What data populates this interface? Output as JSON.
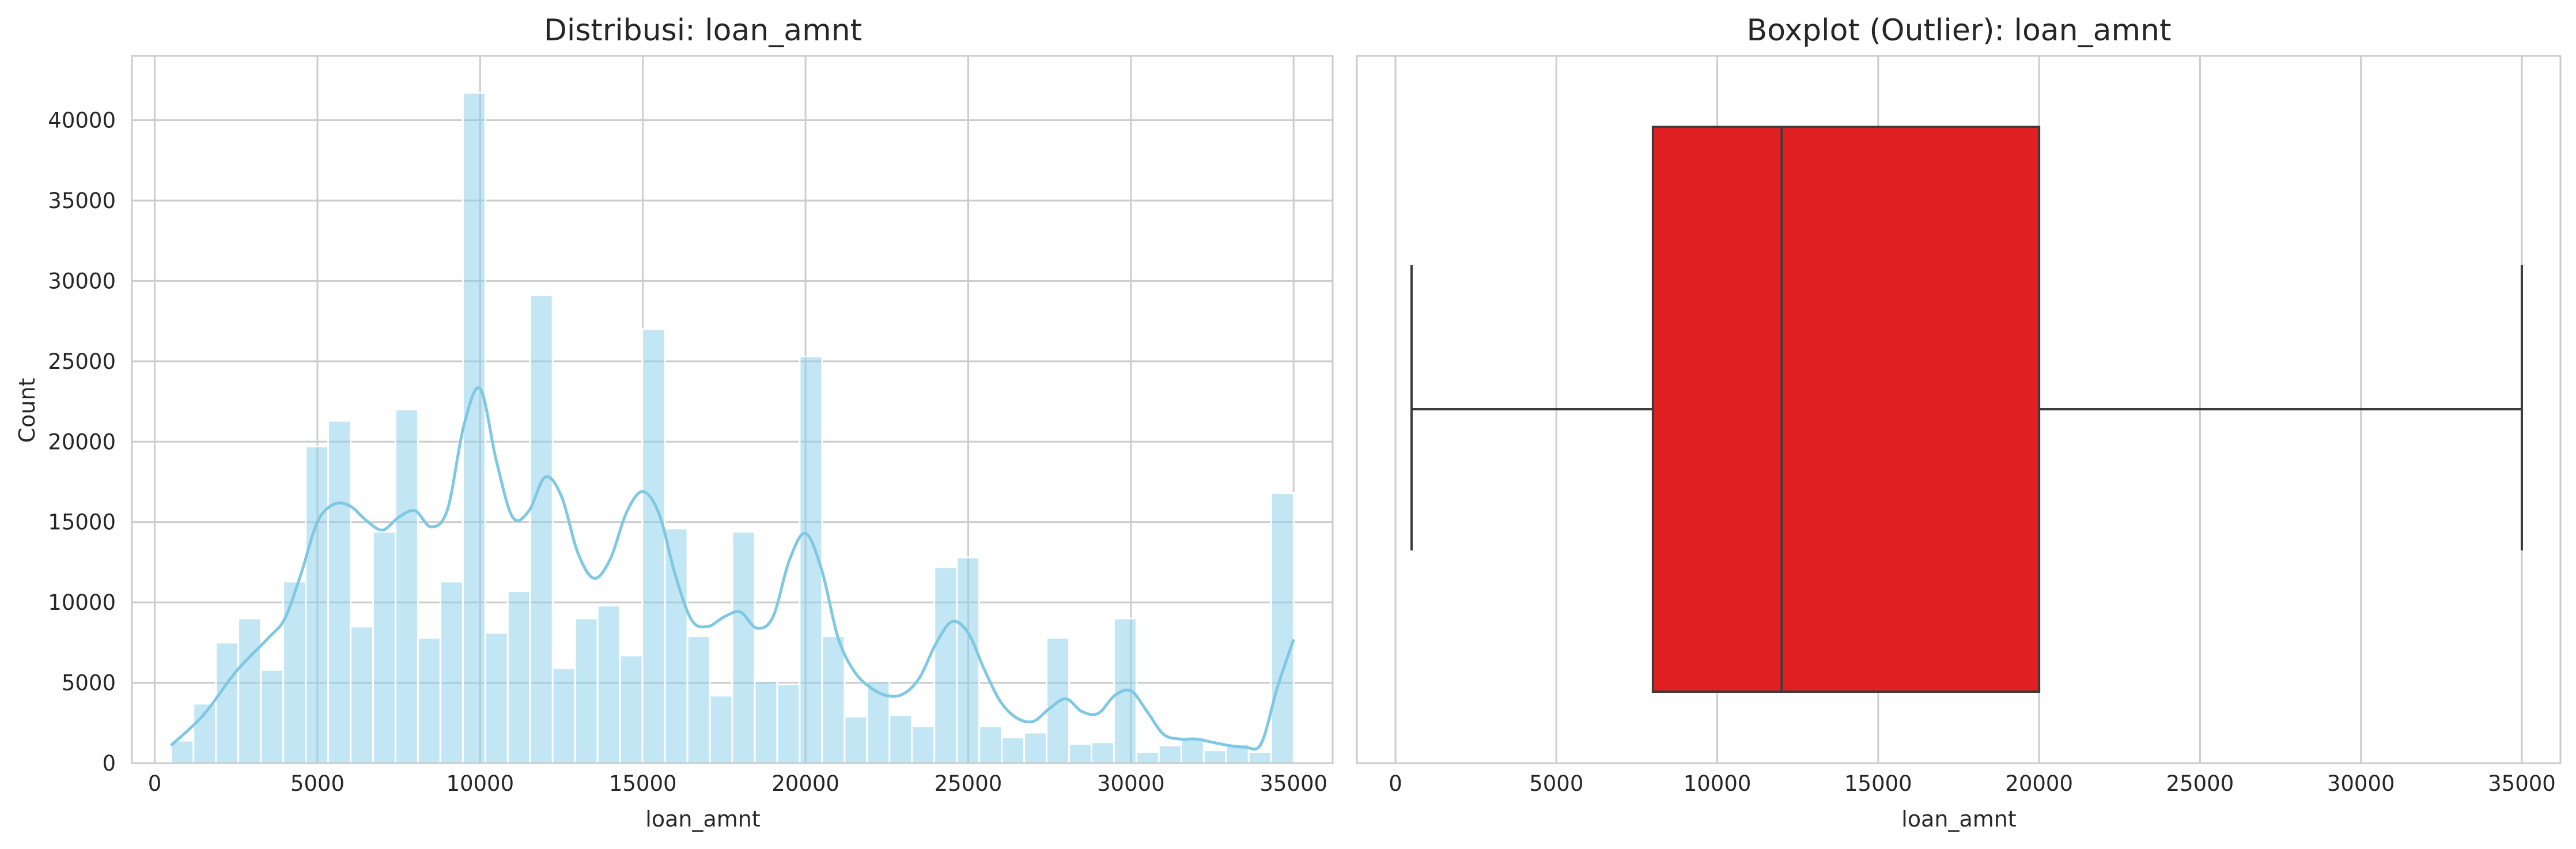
{
  "chart_data": [
    {
      "type": "bar",
      "title": "Distribusi: loan_amnt",
      "xlabel": "loan_amnt",
      "ylabel": "Count",
      "xlim": [
        -700,
        36200
      ],
      "ylim": [
        0,
        44000
      ],
      "xticks": [
        0,
        5000,
        10000,
        15000,
        20000,
        25000,
        30000,
        35000
      ],
      "yticks": [
        0,
        5000,
        10000,
        15000,
        20000,
        25000,
        30000,
        35000,
        40000
      ],
      "bin_start": 500,
      "bin_width": 690,
      "bar_color": "#87ceeb",
      "kde_color": "#7ec8e3",
      "grid": true,
      "values": [
        1400,
        3700,
        7500,
        9000,
        5800,
        11300,
        19700,
        21300,
        8500,
        14400,
        22000,
        7800,
        11300,
        41700,
        8100,
        10700,
        29100,
        5900,
        9000,
        9800,
        6700,
        27000,
        14600,
        7900,
        4200,
        14400,
        5100,
        4900,
        25300,
        7900,
        2900,
        5100,
        3000,
        2300,
        12200,
        12800,
        2300,
        1600,
        1900,
        7800,
        1200,
        1300,
        9000,
        700,
        1100,
        1600,
        800,
        1200,
        700,
        16800
      ],
      "kde": [
        [
          500,
          1100
        ],
        [
          1500,
          3000
        ],
        [
          2500,
          5700
        ],
        [
          3500,
          7800
        ],
        [
          4000,
          9000
        ],
        [
          4500,
          11800
        ],
        [
          5000,
          15000
        ],
        [
          5500,
          16100
        ],
        [
          6000,
          16000
        ],
        [
          6500,
          15100
        ],
        [
          7000,
          14500
        ],
        [
          7500,
          15300
        ],
        [
          8000,
          15700
        ],
        [
          8500,
          14700
        ],
        [
          9000,
          15800
        ],
        [
          9500,
          21000
        ],
        [
          10000,
          23300
        ],
        [
          10500,
          18800
        ],
        [
          11000,
          15300
        ],
        [
          11500,
          15700
        ],
        [
          12000,
          17800
        ],
        [
          12500,
          16600
        ],
        [
          13000,
          13100
        ],
        [
          13500,
          11500
        ],
        [
          14000,
          12700
        ],
        [
          14500,
          15600
        ],
        [
          15000,
          16900
        ],
        [
          15500,
          15500
        ],
        [
          16000,
          11700
        ],
        [
          16500,
          8900
        ],
        [
          17000,
          8500
        ],
        [
          17500,
          9100
        ],
        [
          18000,
          9400
        ],
        [
          18500,
          8400
        ],
        [
          19000,
          9100
        ],
        [
          19500,
          12600
        ],
        [
          20000,
          14300
        ],
        [
          20500,
          12000
        ],
        [
          21000,
          7800
        ],
        [
          21500,
          5700
        ],
        [
          22000,
          4700
        ],
        [
          22500,
          4200
        ],
        [
          23000,
          4300
        ],
        [
          23500,
          5300
        ],
        [
          24000,
          7400
        ],
        [
          24500,
          8800
        ],
        [
          25000,
          8100
        ],
        [
          25500,
          5800
        ],
        [
          26000,
          3800
        ],
        [
          26500,
          2800
        ],
        [
          27000,
          2600
        ],
        [
          27500,
          3400
        ],
        [
          28000,
          4000
        ],
        [
          28500,
          3200
        ],
        [
          29000,
          3100
        ],
        [
          29500,
          4200
        ],
        [
          30000,
          4500
        ],
        [
          30500,
          3200
        ],
        [
          31000,
          1800
        ],
        [
          31500,
          1500
        ],
        [
          32000,
          1500
        ],
        [
          32500,
          1300
        ],
        [
          33000,
          1100
        ],
        [
          33500,
          1000
        ],
        [
          34000,
          1200
        ],
        [
          34500,
          4700
        ],
        [
          35000,
          7700
        ]
      ]
    },
    {
      "type": "box",
      "title": "Boxplot (Outlier): loan_amnt",
      "xlabel": "loan_amnt",
      "xlim": [
        -1200,
        36200
      ],
      "xticks": [
        0,
        5000,
        10000,
        15000,
        20000,
        25000,
        30000,
        35000
      ],
      "whisker_low": 500,
      "q1": 8000,
      "median": 12000,
      "q3": 20000,
      "whisker_high": 35000,
      "box_color": "#e01f22",
      "grid": true
    }
  ]
}
